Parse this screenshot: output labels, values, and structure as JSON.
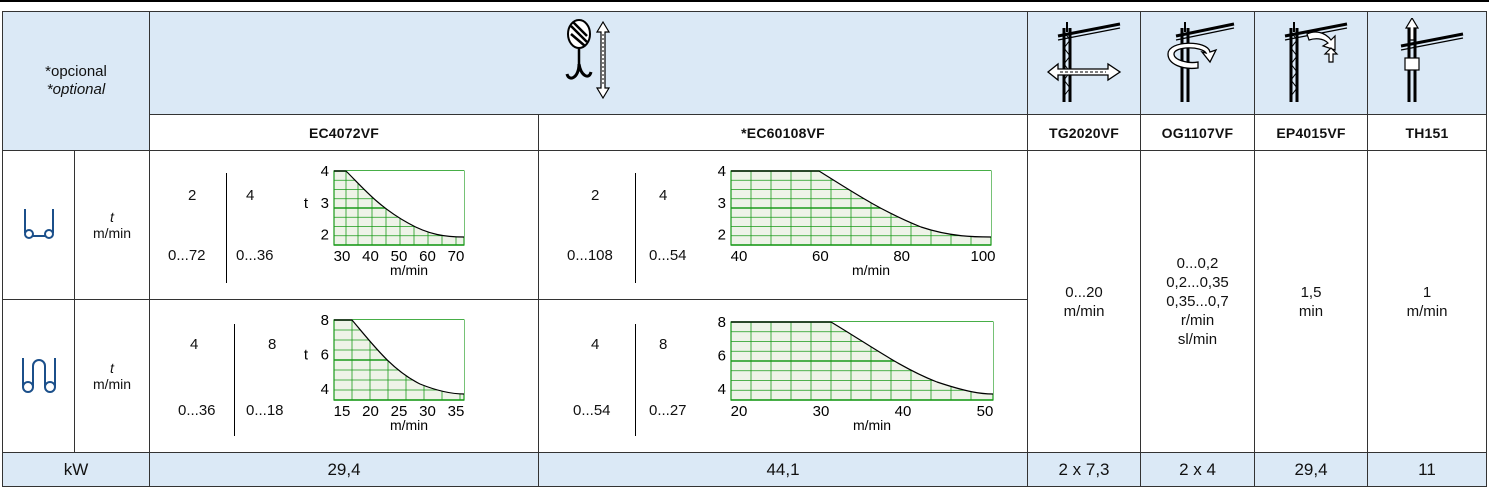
{
  "header": {
    "optional_pt": "*opcional",
    "optional_en": "*optional",
    "models": [
      "EC4072VF",
      "*EC60108VF",
      "TG2020VF",
      "OG1107VF",
      "EP4015VF",
      "TH151"
    ]
  },
  "rows": {
    "row_unit_t": "t",
    "row_unit_speed": "m/min"
  },
  "ec4072": {
    "single": {
      "load_a": "2",
      "load_b": "4",
      "speed_a": "0...72",
      "speed_b": "0...36"
    },
    "double": {
      "load_a": "4",
      "load_b": "8",
      "speed_a": "0...36",
      "speed_b": "0...18"
    }
  },
  "ec60108": {
    "single": {
      "load_a": "2",
      "load_b": "4",
      "speed_a": "0...108",
      "speed_b": "0...54"
    },
    "double": {
      "load_a": "4",
      "load_b": "8",
      "speed_a": "0...54",
      "speed_b": "0...27"
    }
  },
  "other": {
    "tg2020_value": "0...20",
    "tg2020_unit": "m/min",
    "og1107_lines": [
      "0...0,2",
      "0,2...0,35",
      "0,35...0,7",
      "r/min",
      "sl/min"
    ],
    "ep4015_value": "1,5",
    "ep4015_unit": "min",
    "th151_value": "1",
    "th151_unit": "m/min"
  },
  "footer": {
    "label": "kW",
    "values": [
      "29,4",
      "44,1",
      "2 x 7,3",
      "2 x 4",
      "29,4",
      "11"
    ]
  },
  "charts": {
    "t_label": "t",
    "x_unit": "m/min"
  },
  "chart_data": [
    {
      "type": "area",
      "y_ticks": [
        2,
        3,
        4
      ],
      "x_ticks": [
        30,
        40,
        50,
        60,
        70
      ],
      "xlabel": "m/min",
      "ylabel": "t"
    },
    {
      "type": "area",
      "y_ticks": [
        2,
        3,
        4
      ],
      "x_ticks": [
        40,
        60,
        80,
        100
      ],
      "xlabel": "m/min",
      "ylabel": "t"
    },
    {
      "type": "area",
      "y_ticks": [
        4,
        6,
        8
      ],
      "x_ticks": [
        15,
        20,
        25,
        30,
        35
      ],
      "xlabel": "m/min",
      "ylabel": "t"
    },
    {
      "type": "area",
      "y_ticks": [
        4,
        6,
        8
      ],
      "x_ticks": [
        20,
        30,
        40,
        50
      ],
      "xlabel": "m/min",
      "ylabel": "t"
    }
  ],
  "colors": {
    "header_bg": "#dbe9f6",
    "grid": "#1a9a1a",
    "curve_fill": "#eef3e8"
  }
}
